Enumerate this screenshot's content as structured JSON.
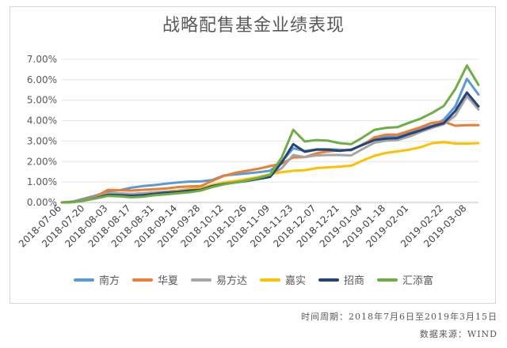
{
  "chart_data": {
    "type": "line",
    "title": "战略配售基金业绩表现",
    "xlabel": "",
    "ylabel": "",
    "ylim": [
      0,
      0.07
    ],
    "y_tick_labels": [
      "0.00%",
      "1.00%",
      "2.00%",
      "3.00%",
      "4.00%",
      "5.00%",
      "6.00%",
      "7.00%"
    ],
    "y_ticks": [
      0,
      0.01,
      0.02,
      0.03,
      0.04,
      0.05,
      0.06,
      0.07
    ],
    "grid": true,
    "legend_position": "bottom",
    "x_tick_labels": [
      "2018-07-06",
      "2018-07-20",
      "2018-08-03",
      "2018-08-17",
      "2018-08-31",
      "2018-09-14",
      "2018-09-28",
      "2018-10-12",
      "2018-10-26",
      "2018-11-09",
      "2018-11-23",
      "2018-12-07",
      "2018-12-21",
      "2019-01-04",
      "2019-01-18",
      "2019-02-01",
      "2019-02-22",
      "2019-03-08"
    ],
    "x": [
      "2018-07-06",
      "2018-07-13",
      "2018-07-20",
      "2018-07-27",
      "2018-08-03",
      "2018-08-10",
      "2018-08-17",
      "2018-08-24",
      "2018-08-31",
      "2018-09-07",
      "2018-09-14",
      "2018-09-21",
      "2018-09-28",
      "2018-10-05",
      "2018-10-12",
      "2018-10-19",
      "2018-10-26",
      "2018-11-02",
      "2018-11-09",
      "2018-11-16",
      "2018-11-23",
      "2018-11-30",
      "2018-12-07",
      "2018-12-14",
      "2018-12-21",
      "2018-12-28",
      "2019-01-04",
      "2019-01-11",
      "2019-01-18",
      "2019-01-25",
      "2019-02-01",
      "2019-02-08",
      "2019-02-15",
      "2019-02-22",
      "2019-03-01",
      "2019-03-08",
      "2019-03-15"
    ],
    "series": [
      {
        "name": "南方",
        "color": "#5b9bd5",
        "values": [
          0.0,
          0.0005,
          0.002,
          0.0035,
          0.0055,
          0.006,
          0.0072,
          0.008,
          0.0085,
          0.0092,
          0.0098,
          0.0102,
          0.0103,
          0.011,
          0.0132,
          0.0137,
          0.0142,
          0.0148,
          0.0155,
          0.02,
          0.0265,
          0.0252,
          0.026,
          0.026,
          0.0258,
          0.0255,
          0.0285,
          0.031,
          0.0322,
          0.0322,
          0.034,
          0.036,
          0.0375,
          0.0405,
          0.047,
          0.0605,
          0.0528
        ]
      },
      {
        "name": "华夏",
        "color": "#ed7d31",
        "values": [
          0.0,
          0.0003,
          0.0015,
          0.003,
          0.0062,
          0.006,
          0.0058,
          0.0062,
          0.0065,
          0.0068,
          0.0075,
          0.0078,
          0.008,
          0.0105,
          0.013,
          0.0145,
          0.0155,
          0.0165,
          0.0178,
          0.019,
          0.022,
          0.0222,
          0.024,
          0.025,
          0.0255,
          0.0258,
          0.0282,
          0.0318,
          0.0332,
          0.0332,
          0.035,
          0.0368,
          0.039,
          0.0395,
          0.0375,
          0.0378,
          0.0378
        ]
      },
      {
        "name": "易方达",
        "color": "#a5a5a5",
        "values": [
          0.0,
          0.0002,
          0.0012,
          0.0025,
          0.0045,
          0.0045,
          0.0042,
          0.0045,
          0.005,
          0.0053,
          0.0058,
          0.0065,
          0.007,
          0.0085,
          0.0098,
          0.0105,
          0.0112,
          0.012,
          0.013,
          0.0168,
          0.0232,
          0.0222,
          0.023,
          0.0232,
          0.0232,
          0.023,
          0.0262,
          0.0292,
          0.0302,
          0.0305,
          0.0322,
          0.0345,
          0.0365,
          0.0382,
          0.0425,
          0.052,
          0.0455
        ]
      },
      {
        "name": "嘉实",
        "color": "#ffc000",
        "values": [
          0.0,
          0.0002,
          0.001,
          0.0022,
          0.004,
          0.0035,
          0.0032,
          0.0035,
          0.0042,
          0.0048,
          0.0055,
          0.0062,
          0.0068,
          0.0085,
          0.0098,
          0.0105,
          0.0115,
          0.0125,
          0.0138,
          0.0148,
          0.0155,
          0.0158,
          0.0168,
          0.0172,
          0.0175,
          0.018,
          0.0205,
          0.0228,
          0.0242,
          0.025,
          0.0258,
          0.027,
          0.029,
          0.0295,
          0.0288,
          0.0288,
          0.029
        ]
      },
      {
        "name": "招商",
        "color": "#264478",
        "values": [
          0.0,
          0.0002,
          0.001,
          0.0022,
          0.0038,
          0.0036,
          0.0033,
          0.0036,
          0.0042,
          0.0048,
          0.0052,
          0.0058,
          0.0062,
          0.008,
          0.009,
          0.0098,
          0.0105,
          0.0115,
          0.0125,
          0.0195,
          0.0285,
          0.0248,
          0.0258,
          0.0258,
          0.0252,
          0.0258,
          0.0282,
          0.0305,
          0.0312,
          0.0315,
          0.0335,
          0.0352,
          0.0372,
          0.0388,
          0.0448,
          0.0538,
          0.047
        ]
      },
      {
        "name": "汇添富",
        "color": "#70ad47",
        "values": [
          0.0,
          0.0002,
          0.001,
          0.002,
          0.0032,
          0.003,
          0.0025,
          0.0028,
          0.0035,
          0.004,
          0.0045,
          0.005,
          0.0058,
          0.0075,
          0.0088,
          0.0098,
          0.0108,
          0.012,
          0.0135,
          0.022,
          0.0355,
          0.0298,
          0.0305,
          0.0302,
          0.029,
          0.0285,
          0.0318,
          0.0355,
          0.0365,
          0.0368,
          0.039,
          0.041,
          0.0438,
          0.0472,
          0.0555,
          0.067,
          0.0575
        ]
      }
    ]
  },
  "footnotes": {
    "period": "时间周期：2018年7月6日至2019年3月15日",
    "source": "数据来源：WIND"
  }
}
